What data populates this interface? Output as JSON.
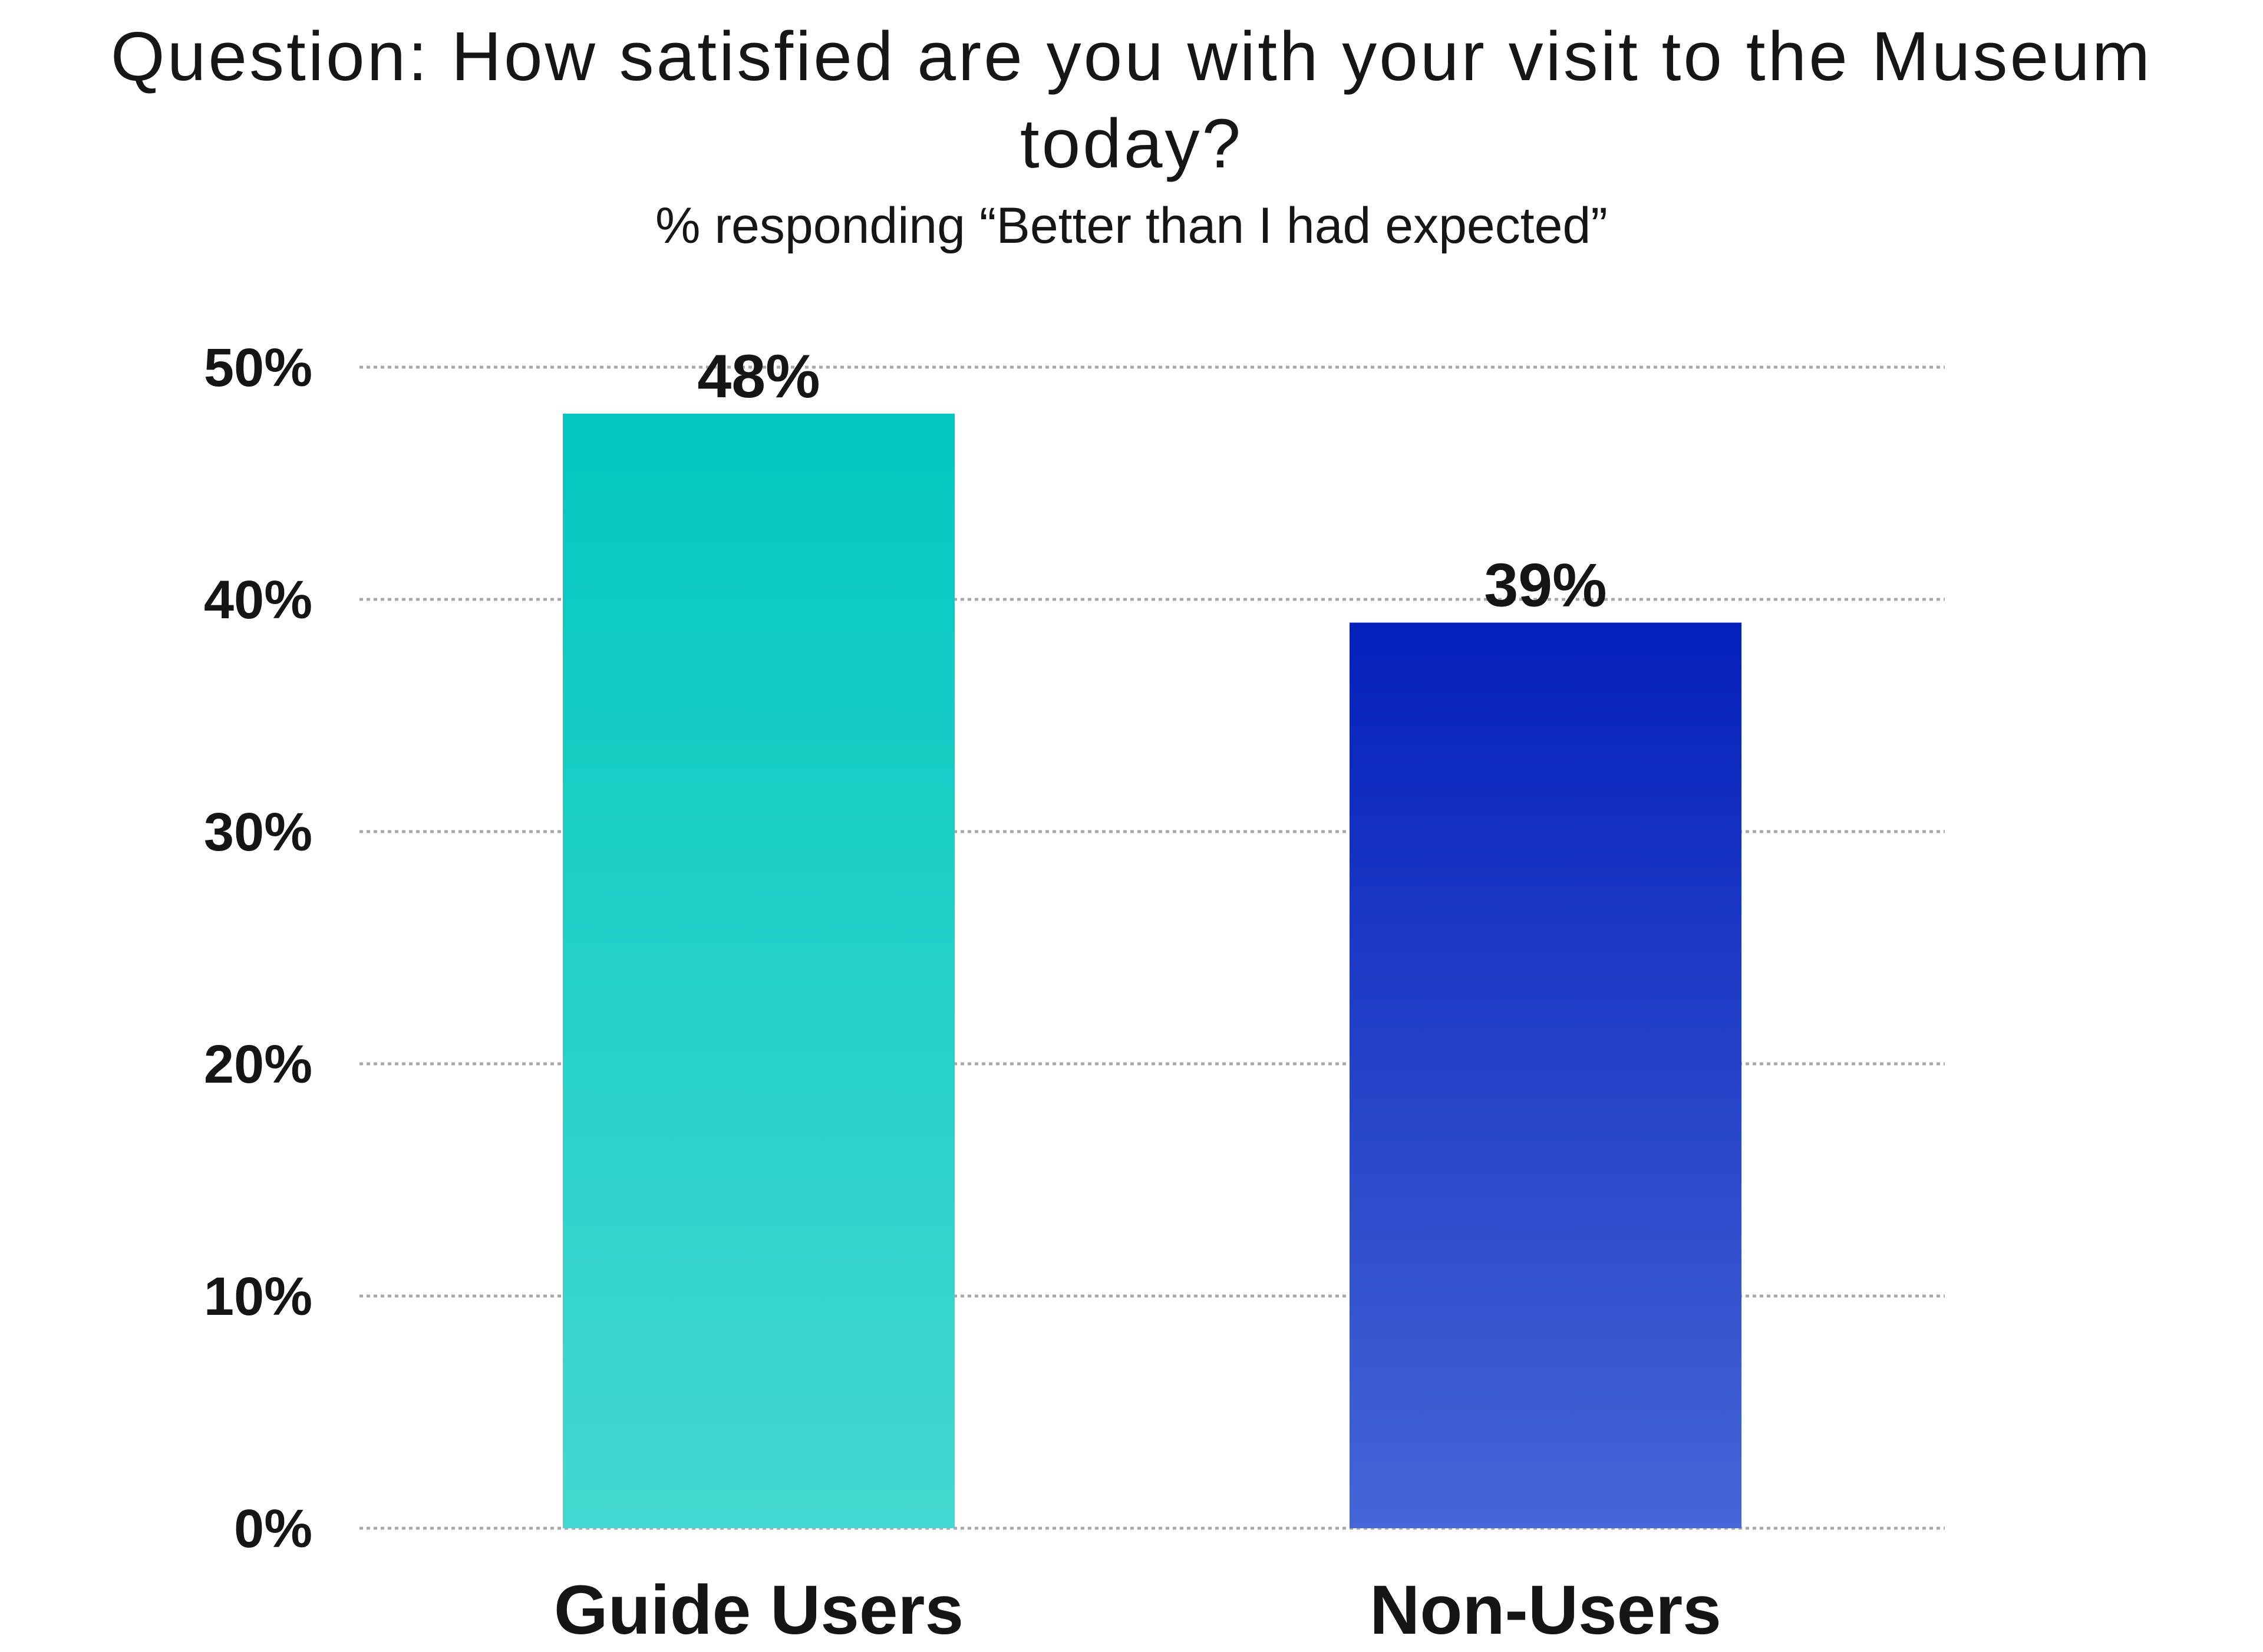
{
  "chart_data": {
    "type": "bar",
    "title": "Question: How satisfied are you with your visit to the Museum today?",
    "subtitle": "% responding “Better than I had expected”",
    "categories": [
      "Guide Users",
      "Non-Users"
    ],
    "values": [
      48,
      39
    ],
    "data_labels": [
      "48%",
      "39%"
    ],
    "ylim": [
      0,
      50
    ],
    "y_ticks": [
      0,
      10,
      20,
      30,
      40,
      50
    ],
    "y_tick_labels": [
      "0%",
      "10%",
      "20%",
      "30%",
      "40%",
      "50%"
    ],
    "xlabel": "",
    "ylabel": "",
    "grid": true,
    "legend": "none",
    "bar_colors": [
      {
        "top": "#02c8bf",
        "bottom": "#43d8d1"
      },
      {
        "top": "#0420bb",
        "bottom": "#4466d6"
      }
    ]
  }
}
